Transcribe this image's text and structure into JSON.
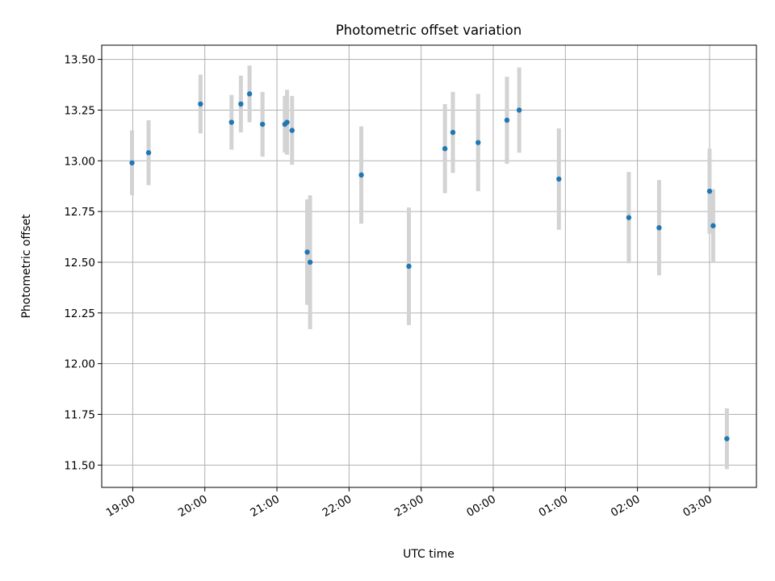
{
  "chart_data": {
    "type": "scatter",
    "title": "Photometric offset variation",
    "xlabel": "UTC time",
    "ylabel": "Photometric offset",
    "x_unit": "hours after 18:00 UTC (wrapping past midnight)",
    "x_ticks": [
      {
        "value": 1,
        "label": "19:00"
      },
      {
        "value": 2,
        "label": "20:00"
      },
      {
        "value": 3,
        "label": "21:00"
      },
      {
        "value": 4,
        "label": "22:00"
      },
      {
        "value": 5,
        "label": "23:00"
      },
      {
        "value": 6,
        "label": "00:00"
      },
      {
        "value": 7,
        "label": "01:00"
      },
      {
        "value": 8,
        "label": "02:00"
      },
      {
        "value": 9,
        "label": "03:00"
      }
    ],
    "y_ticks": [
      11.5,
      11.75,
      12.0,
      12.25,
      12.5,
      12.75,
      13.0,
      13.25,
      13.5
    ],
    "y_tick_labels": [
      "11.50",
      "11.75",
      "12.00",
      "12.25",
      "12.50",
      "12.75",
      "13.00",
      "13.25",
      "13.50"
    ],
    "xlim": [
      0.57,
      9.65
    ],
    "ylim": [
      11.39,
      13.57
    ],
    "grid": true,
    "marker_color": "#1f77b4",
    "errorbar_color": "#d3d3d3",
    "points": [
      {
        "x": 0.99,
        "y": 12.99,
        "err": 0.16
      },
      {
        "x": 1.22,
        "y": 13.04,
        "err": 0.16
      },
      {
        "x": 1.94,
        "y": 13.28,
        "err": 0.145
      },
      {
        "x": 2.37,
        "y": 13.19,
        "err": 0.135
      },
      {
        "x": 2.5,
        "y": 13.28,
        "err": 0.14
      },
      {
        "x": 2.62,
        "y": 13.33,
        "err": 0.14
      },
      {
        "x": 2.8,
        "y": 13.18,
        "err": 0.16
      },
      {
        "x": 3.11,
        "y": 13.18,
        "err": 0.14
      },
      {
        "x": 3.14,
        "y": 13.19,
        "err": 0.16
      },
      {
        "x": 3.21,
        "y": 13.15,
        "err": 0.17
      },
      {
        "x": 3.42,
        "y": 12.55,
        "err": 0.26
      },
      {
        "x": 3.46,
        "y": 12.5,
        "err": 0.33
      },
      {
        "x": 4.17,
        "y": 12.93,
        "err": 0.24
      },
      {
        "x": 4.83,
        "y": 12.48,
        "err": 0.29
      },
      {
        "x": 5.33,
        "y": 13.06,
        "err": 0.22
      },
      {
        "x": 5.44,
        "y": 13.14,
        "err": 0.2
      },
      {
        "x": 5.79,
        "y": 13.09,
        "err": 0.24
      },
      {
        "x": 6.19,
        "y": 13.2,
        "err": 0.215
      },
      {
        "x": 6.36,
        "y": 13.25,
        "err": 0.21
      },
      {
        "x": 6.91,
        "y": 12.91,
        "err": 0.25
      },
      {
        "x": 7.88,
        "y": 12.72,
        "err": 0.225
      },
      {
        "x": 8.3,
        "y": 12.67,
        "err": 0.235
      },
      {
        "x": 9.0,
        "y": 12.85,
        "err": 0.21
      },
      {
        "x": 9.05,
        "y": 12.68,
        "err": 0.18
      },
      {
        "x": 9.24,
        "y": 11.63,
        "err": 0.15
      }
    ]
  }
}
